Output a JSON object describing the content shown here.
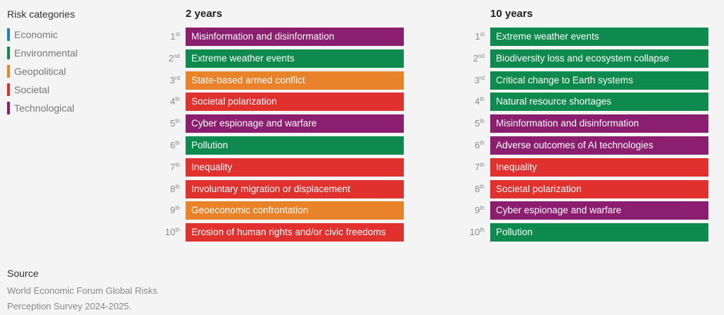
{
  "legend": {
    "title": "Risk categories",
    "items": [
      {
        "key": "economic",
        "label": "Economic",
        "color": "#1f7fc1"
      },
      {
        "key": "environmental",
        "label": "Environmental",
        "color": "#0e8a4f"
      },
      {
        "key": "geopolitical",
        "label": "Geopolitical",
        "color": "#e9832a"
      },
      {
        "key": "societal",
        "label": "Societal",
        "color": "#e1312f"
      },
      {
        "key": "technological",
        "label": "Technological",
        "color": "#8b1e6f"
      }
    ]
  },
  "chart_data": {
    "type": "table",
    "columns": [
      {
        "title": "2 years",
        "rows": [
          {
            "num": "1",
            "suffix": "st",
            "label": "Misinformation and disinformation",
            "category": "technological"
          },
          {
            "num": "2",
            "suffix": "nd",
            "label": "Extreme weather events",
            "category": "environmental"
          },
          {
            "num": "3",
            "suffix": "rd",
            "label": "State-based armed conflict",
            "category": "geopolitical"
          },
          {
            "num": "4",
            "suffix": "th",
            "label": "Societal polarization",
            "category": "societal"
          },
          {
            "num": "5",
            "suffix": "th",
            "label": "Cyber espionage and warfare",
            "category": "technological"
          },
          {
            "num": "6",
            "suffix": "th",
            "label": "Pollution",
            "category": "environmental"
          },
          {
            "num": "7",
            "suffix": "th",
            "label": "Inequality",
            "category": "societal"
          },
          {
            "num": "8",
            "suffix": "th",
            "label": "Involuntary migration or displacement",
            "category": "societal"
          },
          {
            "num": "9",
            "suffix": "th",
            "label": "Geoeconomic confrontation",
            "category": "geopolitical"
          },
          {
            "num": "10",
            "suffix": "th",
            "label": "Erosion of human rights and/or civic freedoms",
            "category": "societal"
          }
        ]
      },
      {
        "title": "10 years",
        "rows": [
          {
            "num": "1",
            "suffix": "st",
            "label": "Extreme weather events",
            "category": "environmental"
          },
          {
            "num": "2",
            "suffix": "nd",
            "label": "Biodiversity loss and ecosystem collapse",
            "category": "environmental"
          },
          {
            "num": "3",
            "suffix": "rd",
            "label": "Critical change to Earth systems",
            "category": "environmental"
          },
          {
            "num": "4",
            "suffix": "th",
            "label": "Natural resource shortages",
            "category": "environmental"
          },
          {
            "num": "5",
            "suffix": "th",
            "label": "Misinformation and disinformation",
            "category": "technological"
          },
          {
            "num": "6",
            "suffix": "th",
            "label": "Adverse outcomes of AI technologies",
            "category": "technological"
          },
          {
            "num": "7",
            "suffix": "th",
            "label": "Inequality",
            "category": "societal"
          },
          {
            "num": "8",
            "suffix": "th",
            "label": "Societal polarization",
            "category": "societal"
          },
          {
            "num": "9",
            "suffix": "th",
            "label": "Cyber espionage and warfare",
            "category": "technological"
          },
          {
            "num": "10",
            "suffix": "th",
            "label": "Pollution",
            "category": "environmental"
          }
        ]
      }
    ]
  },
  "source": {
    "title": "Source",
    "text": "World Economic Forum Global Risks Perception Survey 2024-2025."
  }
}
